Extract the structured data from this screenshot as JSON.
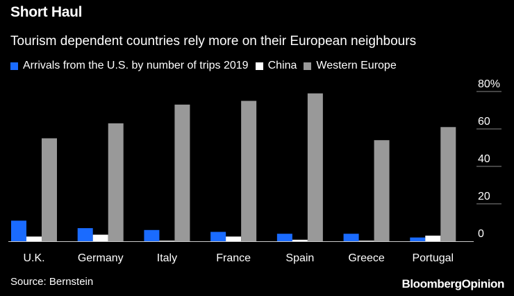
{
  "header": {
    "title": "Short Haul",
    "subtitle": "Tourism dependent countries rely more on their European neighbours"
  },
  "footer": {
    "source": "Source: Bernstein",
    "brand_part1": "Bloomberg",
    "brand_part2": "Opinion"
  },
  "colors": {
    "background": "#000000",
    "series_us": "#1a6bff",
    "series_china": "#ffffff",
    "series_western_europe": "#999999",
    "gridline": "#888888"
  },
  "chart_data": {
    "type": "bar",
    "title": "Short Haul",
    "subtitle": "Tourism dependent countries rely more on their European neighbours",
    "categories": [
      "U.K.",
      "Germany",
      "Italy",
      "France",
      "Spain",
      "Greece",
      "Portugal"
    ],
    "series": [
      {
        "name": "Arrivals from the U.S. by number of trips 2019",
        "values": [
          11,
          7,
          6,
          5,
          4,
          4,
          2
        ]
      },
      {
        "name": "China",
        "values": [
          2.5,
          3.5,
          0.3,
          2.5,
          0.8,
          0.2,
          3
        ]
      },
      {
        "name": "Western Europe",
        "values": [
          55,
          63,
          73,
          75,
          79,
          54,
          61
        ]
      }
    ],
    "ylim": [
      0,
      80
    ],
    "yticks": [
      0,
      20,
      40,
      60,
      80
    ],
    "ytick_labels": [
      "0",
      "20",
      "40",
      "60",
      "80%"
    ],
    "y_axis_side": "right",
    "grid": true,
    "legend_position": "top-left",
    "xlabel": "",
    "ylabel": ""
  }
}
